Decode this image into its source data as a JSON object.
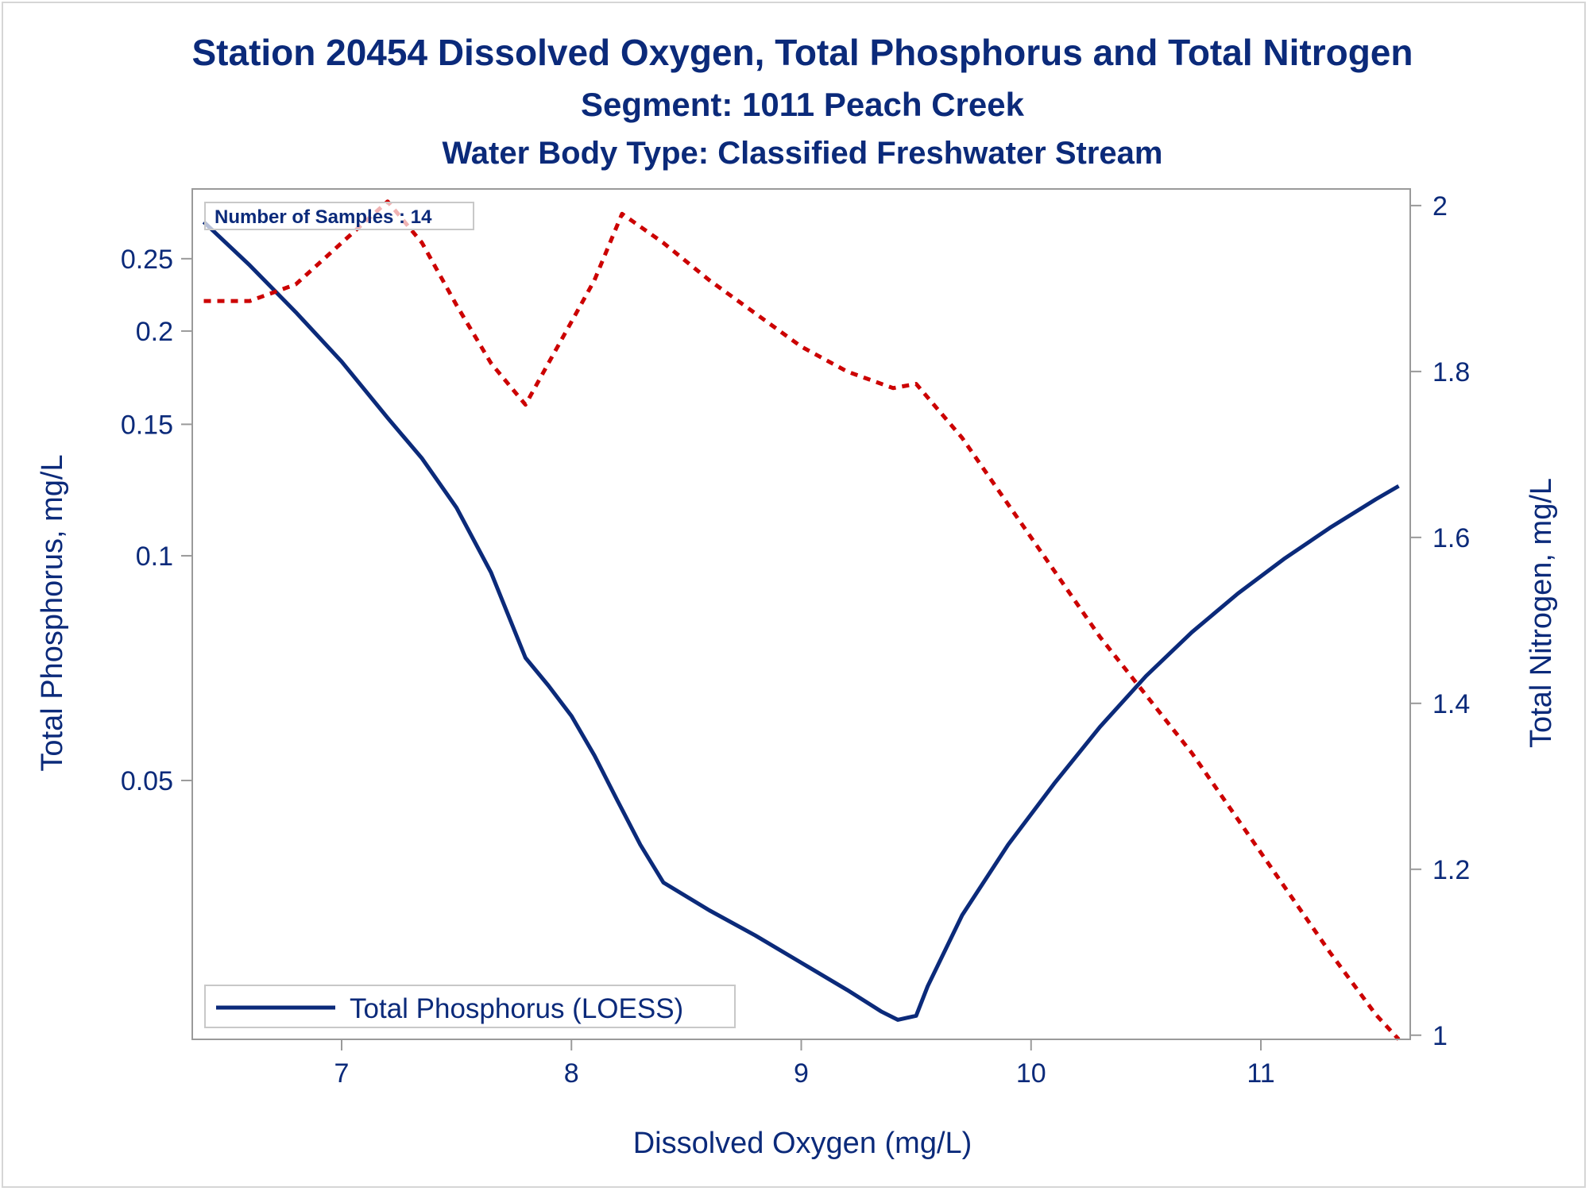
{
  "chart_data": {
    "type": "line",
    "title": "Station 20454  Dissolved Oxygen, Total Phosphorus and Total Nitrogen",
    "subtitle": "Segment: 1011  Peach Creek",
    "subtitle2": "Water Body Type: Classified Freshwater Stream",
    "xlabel": "Dissolved Oxygen (mg/L)",
    "ylabel": "Total Phosphorus, mg/L",
    "y2label": "Total Nitrogen, mg/L",
    "xlim": [
      6.35,
      11.65
    ],
    "ylim": [
      0.0225,
      0.31
    ],
    "yscale": "log",
    "y2lim": [
      0.995,
      2.02
    ],
    "xticks": [
      7,
      8,
      9,
      10,
      11
    ],
    "xticklabels": [
      "7",
      "8",
      "9",
      "10",
      "11"
    ],
    "yticks": [
      0.05,
      0.1,
      0.15,
      0.2,
      0.25
    ],
    "yticklabels": [
      "0.05",
      "0.1",
      "0.15",
      "0.2",
      "0.25"
    ],
    "y2ticks": [
      1.0,
      1.2,
      1.4,
      1.6,
      1.8,
      2.0
    ],
    "y2ticklabels": [
      "1",
      "1.2",
      "1.4",
      "1.6",
      "1.8",
      "2"
    ],
    "annotation": "Number of Samples : 14",
    "legend": {
      "position": "bottom-left",
      "entries": [
        "Total Phosphorus (LOESS)"
      ]
    },
    "series": [
      {
        "name": "Total Phosphorus (LOESS)",
        "axis": "left",
        "color": "#0b2a7a",
        "style": "solid",
        "x": [
          6.4,
          6.6,
          6.8,
          7.0,
          7.2,
          7.35,
          7.5,
          7.65,
          7.8,
          7.9,
          8.0,
          8.1,
          8.2,
          8.3,
          8.4,
          8.6,
          8.8,
          9.0,
          9.2,
          9.35,
          9.42,
          9.5,
          9.55,
          9.7,
          9.9,
          10.1,
          10.3,
          10.5,
          10.7,
          10.9,
          11.1,
          11.3,
          11.5,
          11.6
        ],
        "y": [
          0.28,
          0.245,
          0.212,
          0.182,
          0.153,
          0.135,
          0.116,
          0.095,
          0.073,
          0.067,
          0.061,
          0.054,
          0.047,
          0.041,
          0.0365,
          0.0335,
          0.031,
          0.0285,
          0.0262,
          0.0245,
          0.0239,
          0.0242,
          0.0265,
          0.033,
          0.041,
          0.0495,
          0.059,
          0.069,
          0.079,
          0.089,
          0.099,
          0.109,
          0.119,
          0.124
        ]
      },
      {
        "name": "",
        "axis": "right",
        "color": "#cc0000",
        "style": "dashed",
        "x": [
          6.4,
          6.6,
          6.8,
          7.0,
          7.2,
          7.35,
          7.5,
          7.65,
          7.8,
          7.9,
          8.0,
          8.1,
          8.22,
          8.4,
          8.6,
          8.8,
          9.0,
          9.2,
          9.4,
          9.5,
          9.7,
          9.9,
          10.1,
          10.3,
          10.5,
          10.7,
          10.9,
          11.1,
          11.3,
          11.5,
          11.6
        ],
        "y": [
          1.885,
          1.885,
          1.905,
          1.955,
          2.005,
          1.955,
          1.88,
          1.81,
          1.76,
          1.81,
          1.86,
          1.91,
          1.99,
          1.955,
          1.91,
          1.87,
          1.83,
          1.8,
          1.78,
          1.785,
          1.72,
          1.64,
          1.56,
          1.48,
          1.41,
          1.34,
          1.26,
          1.18,
          1.1,
          1.025,
          0.995
        ]
      }
    ]
  }
}
